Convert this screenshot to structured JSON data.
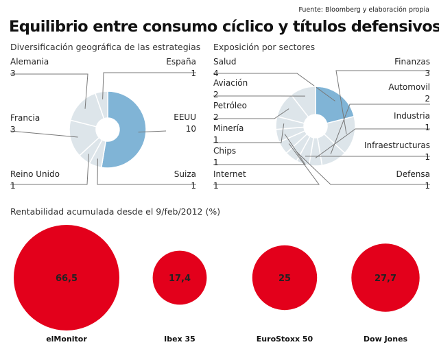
{
  "source": "Fuente: Bloomberg y elaboración propia",
  "title": "Equilibrio entre consumo cíclico y títulos defensivos",
  "colors": {
    "highlight": "#80b4d6",
    "other": "#dde5ea",
    "bubble": "#e3001b",
    "leader": "#777777"
  },
  "chart_data": [
    {
      "type": "pie",
      "title": "Diversificación geográfica de las estrategias",
      "categories": [
        "EEUU",
        "Suiza",
        "Reino Unido",
        "Francia",
        "Alemania",
        "España"
      ],
      "values": [
        10,
        1,
        1,
        3,
        3,
        1
      ],
      "highlight": "EEUU"
    },
    {
      "type": "pie",
      "title": "Exposición por sectores",
      "categories": [
        "Salud",
        "Finanzas",
        "Automovil",
        "Industria",
        "Infraestructuras",
        "Defensa",
        "Internet",
        "Chips",
        "Minería",
        "Petróleo",
        "Aviación"
      ],
      "values": [
        4,
        3,
        2,
        1,
        1,
        1,
        1,
        1,
        1,
        2,
        2
      ],
      "highlight": "Salud"
    },
    {
      "type": "scatter",
      "title": "Rentabilidad acumulada desde el 9/feb/2012 (%)",
      "categories": [
        "elMonitor",
        "Ibex 35",
        "EuroStoxx 50",
        "Dow Jones"
      ],
      "values": [
        66.5,
        17.4,
        25,
        27.7
      ],
      "value_labels": [
        "66,5",
        "17,4",
        "25",
        "27,7"
      ]
    }
  ]
}
